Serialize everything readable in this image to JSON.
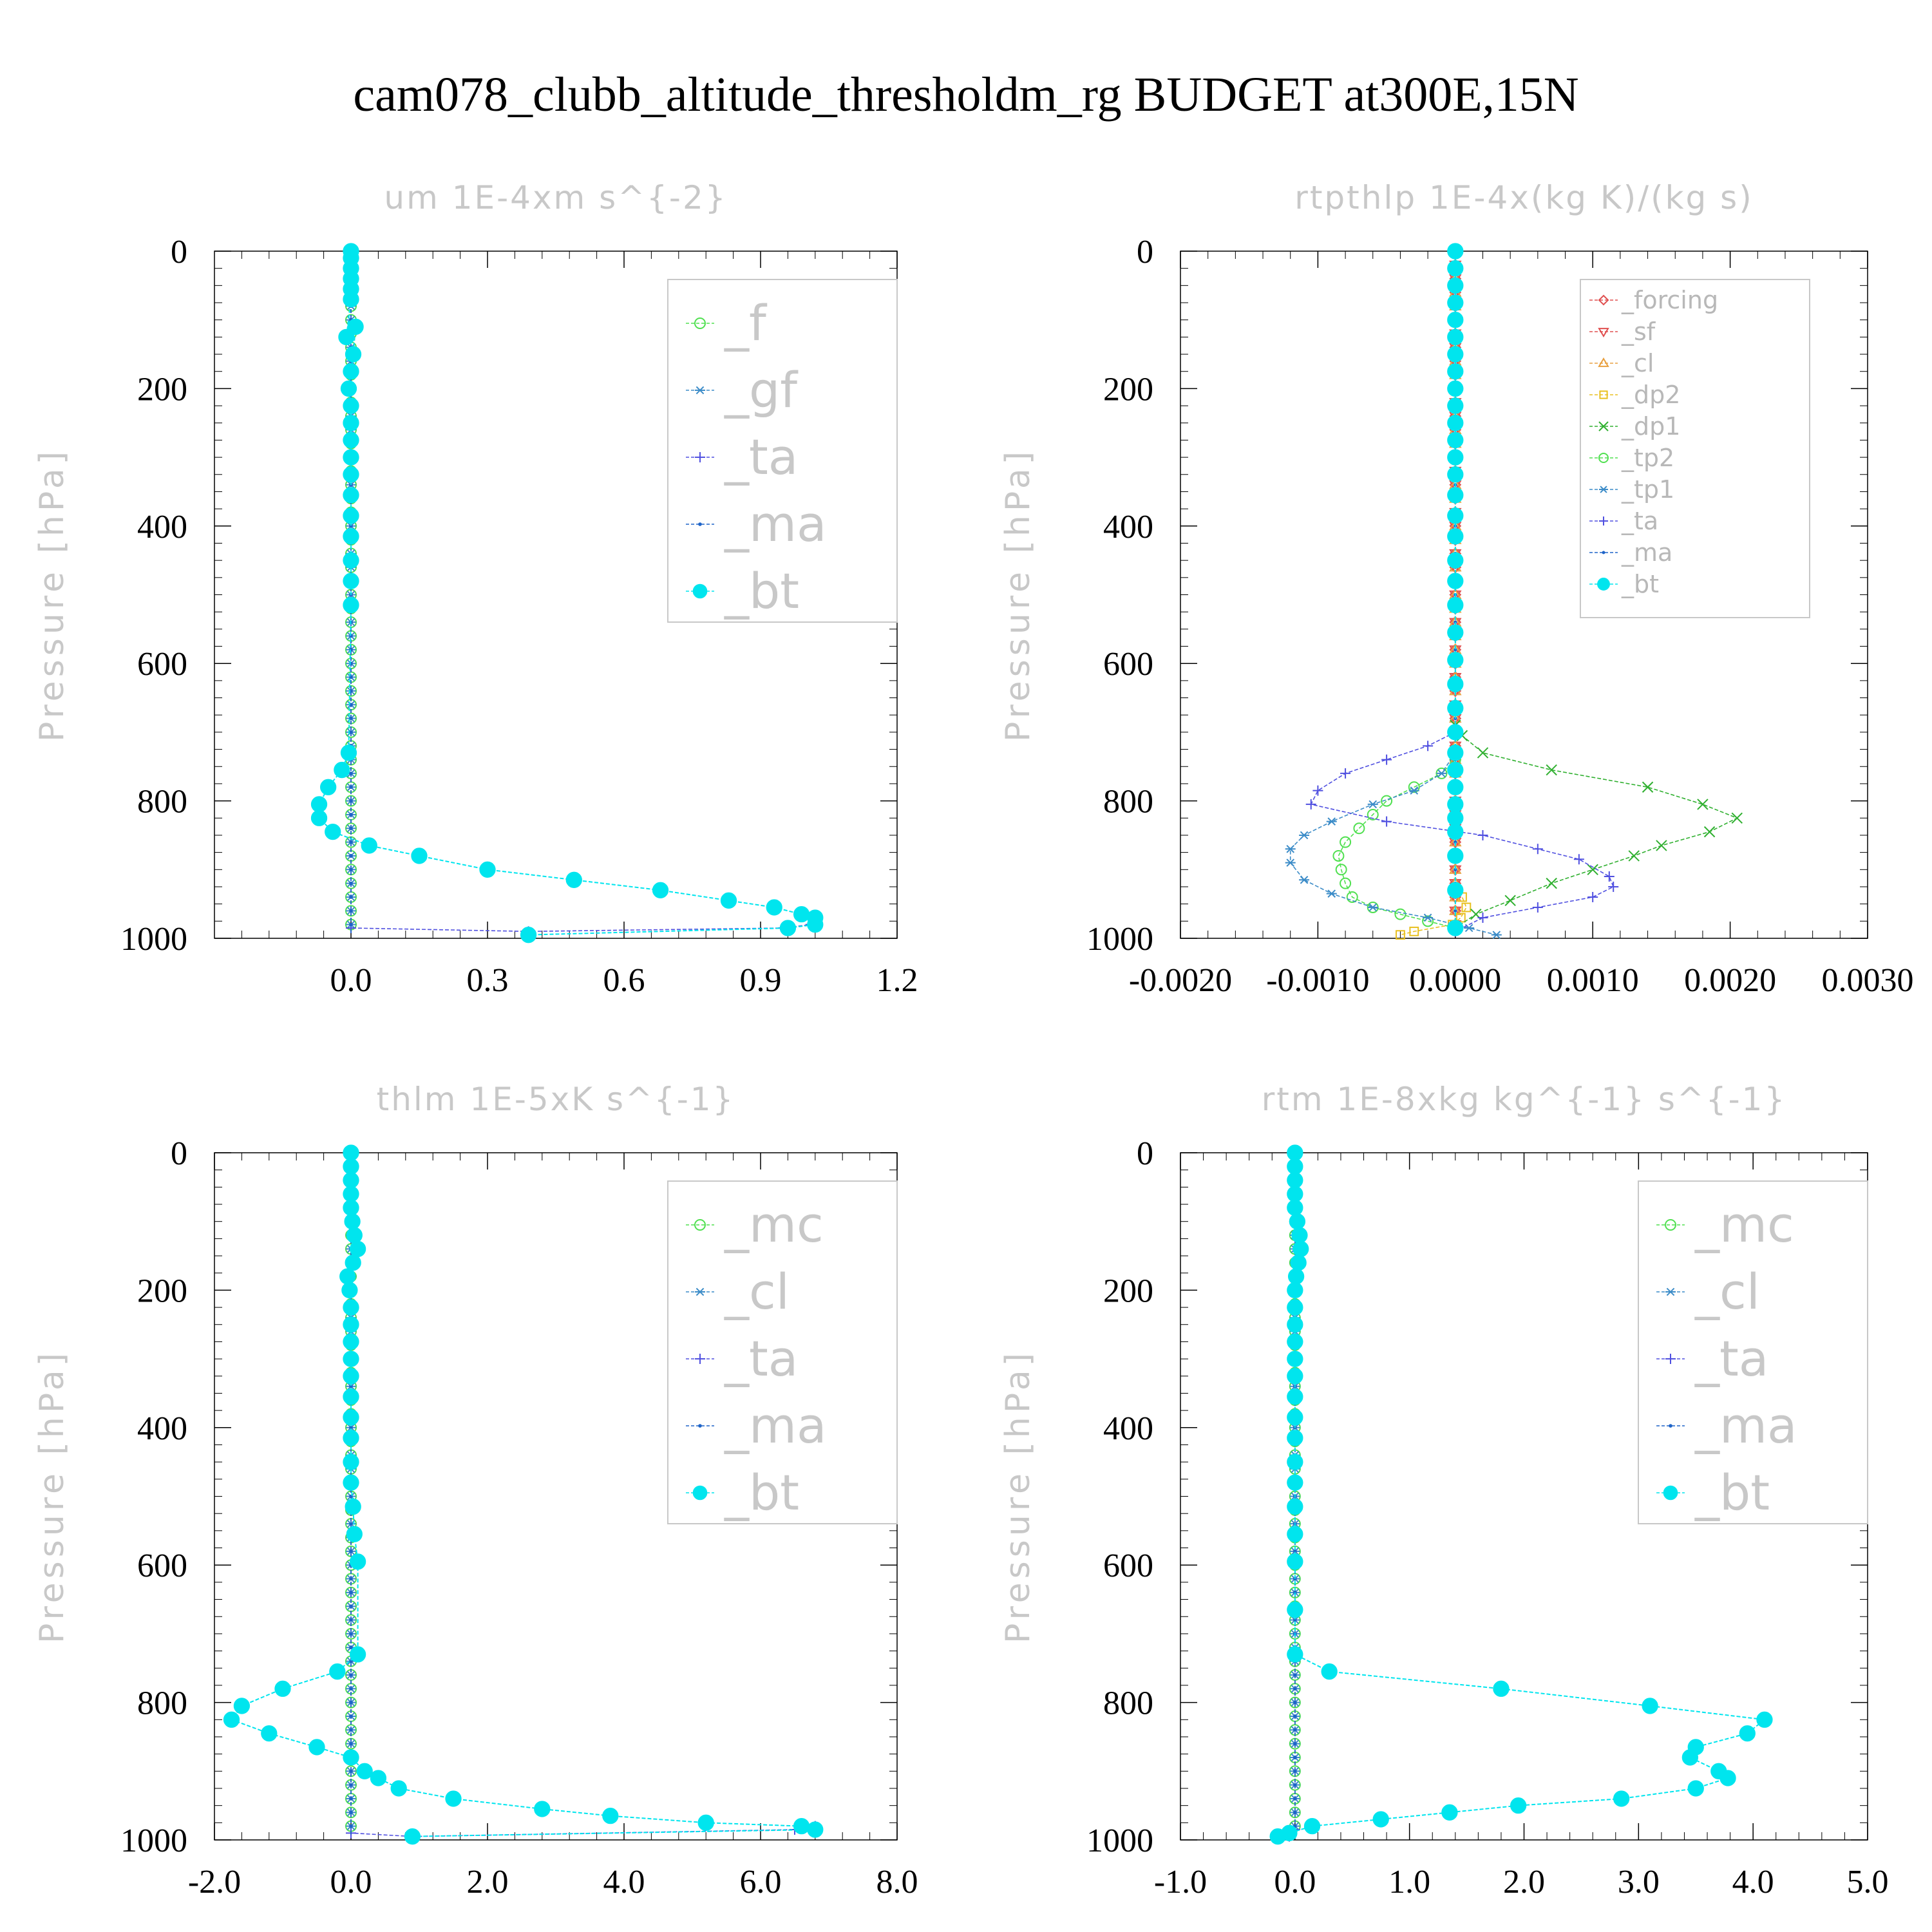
{
  "title": "cam078_clubb_altitude_thresholdm_rg  BUDGET at300E,15N",
  "chart_data": [
    {
      "type": "line",
      "title": "um  1E-4xm s^{-2}",
      "ylabel": "Pressure [hPa]",
      "xlim": [
        -0.3,
        1.2
      ],
      "ylim": [
        1000,
        0
      ],
      "xticks": [
        "0.0",
        "0.3",
        "0.6",
        "0.9",
        "1.2"
      ],
      "xtick_values": [
        0.0,
        0.3,
        0.6,
        0.9,
        1.2
      ],
      "yticks": [
        "0",
        "200",
        "400",
        "600",
        "800",
        "1000"
      ],
      "legend_position": "top-right",
      "legend_size": "big",
      "legend": [
        "_f",
        "_gf",
        "_ta",
        "_ma",
        "_bt"
      ],
      "series": [
        {
          "name": "_f",
          "color": "#50e050",
          "marker": "circle",
          "x": [
            0,
            0
          ],
          "y": [
            0,
            995
          ]
        },
        {
          "name": "_gf",
          "color": "#3c8cc8",
          "marker": "star",
          "x": [
            0,
            0
          ],
          "y": [
            0,
            995
          ]
        },
        {
          "name": "_ta",
          "color": "#5050e0",
          "marker": "plus",
          "x": [
            0,
            0,
            0.39,
            0.95,
            1.01
          ],
          "y": [
            0,
            985,
            990,
            985,
            980
          ]
        },
        {
          "name": "_ma",
          "color": "#1e64c8",
          "marker": "dot",
          "x": [
            0,
            0
          ],
          "y": [
            0,
            995
          ]
        },
        {
          "name": "_bt",
          "color": "#00e5ee",
          "marker": "bigdot",
          "x": [
            0,
            0,
            0,
            0,
            0,
            0,
            -0.01,
            0.01,
            0.005,
            0,
            -0.005,
            0,
            0,
            0,
            0,
            0,
            0,
            0,
            0,
            0,
            0,
            0,
            -0.005,
            -0.02,
            -0.05,
            -0.07,
            -0.07,
            -0.04,
            0.04,
            0.15,
            0.3,
            0.49,
            0.68,
            0.83,
            0.93,
            0.99,
            1.02,
            1.02,
            0.96,
            0.39
          ],
          "y": [
            0,
            10,
            25,
            40,
            55,
            70,
            125,
            110,
            150,
            175,
            200,
            225,
            250,
            275,
            300,
            325,
            355,
            385,
            415,
            450,
            480,
            515,
            730,
            755,
            780,
            805,
            825,
            845,
            865,
            880,
            900,
            915,
            930,
            945,
            955,
            965,
            970,
            980,
            985,
            995
          ]
        }
      ]
    },
    {
      "type": "line",
      "title": "rtpthlp  1E-4x(kg K)/(kg s)",
      "ylabel": "Pressure [hPa]",
      "xlim": [
        -0.002,
        0.003
      ],
      "ylim": [
        1000,
        0
      ],
      "xticks": [
        "-0.0020",
        "-0.0010",
        "0.0000",
        "0.0010",
        "0.0020",
        "0.0030"
      ],
      "xtick_values": [
        -0.002,
        -0.001,
        0.0,
        0.001,
        0.002,
        0.003
      ],
      "yticks": [
        "0",
        "200",
        "400",
        "600",
        "800",
        "1000"
      ],
      "legend_position": "top-right",
      "legend_size": "small",
      "legend": [
        "_forcing",
        "_sf",
        "_cl",
        "_dp2",
        "_dp1",
        "_tp2",
        "_tp1",
        "_ta",
        "_ma",
        "_bt"
      ],
      "series": [
        {
          "name": "_forcing",
          "color": "#e05050",
          "marker": "diamond",
          "x": [
            0,
            0
          ],
          "y": [
            0,
            995
          ]
        },
        {
          "name": "_sf",
          "color": "#e05050",
          "marker": "tri-down",
          "x": [
            0,
            0
          ],
          "y": [
            0,
            995
          ]
        },
        {
          "name": "_cl",
          "color": "#e8a040",
          "marker": "tri-up",
          "x": [
            0,
            0
          ],
          "y": [
            0,
            995
          ]
        },
        {
          "name": "_dp2",
          "color": "#e8c020",
          "marker": "square",
          "x": [
            0,
            0,
            5e-05,
            8e-05,
            4e-05,
            -2e-05,
            -0.0003,
            -0.0004
          ],
          "y": [
            0,
            930,
            940,
            955,
            970,
            980,
            990,
            995
          ]
        },
        {
          "name": "_dp1",
          "color": "#30b030",
          "marker": "x",
          "x": [
            0,
            5e-05,
            0.0002,
            0.0007,
            0.0014,
            0.0018,
            0.00205,
            0.00185,
            0.0015,
            0.0013,
            0.001,
            0.0007,
            0.0004,
            0.00015,
            0
          ],
          "y": [
            690,
            705,
            730,
            755,
            780,
            805,
            825,
            845,
            865,
            880,
            900,
            920,
            945,
            965,
            985
          ]
        },
        {
          "name": "_tp2",
          "color": "#50e050",
          "marker": "circle",
          "x": [
            0,
            -0.0001,
            -0.0003,
            -0.0005,
            -0.0006,
            -0.0007,
            -0.0008,
            -0.00085,
            -0.00083,
            -0.0008,
            -0.00075,
            -0.0006,
            -0.0004,
            -0.0002,
            0
          ],
          "y": [
            740,
            760,
            780,
            800,
            820,
            840,
            860,
            880,
            900,
            920,
            940,
            955,
            965,
            975,
            985
          ]
        },
        {
          "name": "_tp1",
          "color": "#3c8cc8",
          "marker": "star",
          "x": [
            0,
            -0.0001,
            -0.0003,
            -0.0006,
            -0.0009,
            -0.0011,
            -0.0012,
            -0.0012,
            -0.0011,
            -0.0009,
            -0.0006,
            -0.0002,
            0.0001,
            0.0003
          ],
          "y": [
            730,
            760,
            785,
            805,
            830,
            850,
            870,
            890,
            915,
            935,
            955,
            970,
            985,
            995
          ]
        },
        {
          "name": "_ta",
          "color": "#5050e0",
          "marker": "plus",
          "x": [
            0,
            -0.0002,
            -0.0005,
            -0.0008,
            -0.001,
            -0.00105,
            -0.0005,
            0.0002,
            0.0006,
            0.0009,
            0.00112,
            0.00115,
            0.001,
            0.0006,
            0.0002,
            0
          ],
          "y": [
            700,
            720,
            740,
            760,
            785,
            805,
            830,
            850,
            870,
            885,
            910,
            925,
            940,
            955,
            970,
            990
          ]
        },
        {
          "name": "_ma",
          "color": "#1e64c8",
          "marker": "dot",
          "x": [
            0,
            0
          ],
          "y": [
            0,
            995
          ]
        },
        {
          "name": "_bt",
          "color": "#00e5ee",
          "marker": "bigdot",
          "x": [
            0,
            0,
            0,
            0,
            0,
            0,
            0,
            0,
            0,
            0,
            0,
            0,
            0,
            0,
            0,
            0,
            0,
            0,
            0,
            0,
            0,
            0,
            0,
            0,
            0,
            0,
            0,
            0,
            0,
            0,
            0,
            0,
            0,
            0
          ],
          "y": [
            0,
            25,
            50,
            75,
            100,
            125,
            150,
            175,
            200,
            225,
            250,
            275,
            300,
            325,
            355,
            385,
            415,
            450,
            480,
            515,
            555,
            595,
            630,
            665,
            700,
            730,
            755,
            780,
            805,
            825,
            845,
            880,
            930,
            985
          ]
        }
      ]
    },
    {
      "type": "line",
      "title": "thlm  1E-5xK s^{-1}",
      "ylabel": "Pressure [hPa]",
      "xlim": [
        -2.0,
        8.0
      ],
      "ylim": [
        1000,
        0
      ],
      "xticks": [
        "-2.0",
        "0.0",
        "2.0",
        "4.0",
        "6.0",
        "8.0"
      ],
      "xtick_values": [
        -2.0,
        0.0,
        2.0,
        4.0,
        6.0,
        8.0
      ],
      "yticks": [
        "0",
        "200",
        "400",
        "600",
        "800",
        "1000"
      ],
      "legend_position": "top-right",
      "legend_size": "big",
      "legend": [
        "_mc",
        "_cl",
        "_ta",
        "_ma",
        "_bt"
      ],
      "series": [
        {
          "name": "_mc",
          "color": "#50e050",
          "marker": "circle",
          "x": [
            0,
            0
          ],
          "y": [
            0,
            995
          ]
        },
        {
          "name": "_cl",
          "color": "#3c8cc8",
          "marker": "star",
          "x": [
            0,
            0
          ],
          "y": [
            0,
            995
          ]
        },
        {
          "name": "_ta",
          "color": "#5050e0",
          "marker": "plus",
          "x": [
            0,
            0,
            0.9,
            6.5,
            6.8
          ],
          "y": [
            0,
            990,
            995,
            985,
            980
          ]
        },
        {
          "name": "_ma",
          "color": "#1e64c8",
          "marker": "dot",
          "x": [
            0,
            0
          ],
          "y": [
            0,
            995
          ]
        },
        {
          "name": "_bt",
          "color": "#00e5ee",
          "marker": "bigdot",
          "x": [
            0,
            0,
            0,
            0,
            0,
            0.02,
            0.05,
            0.1,
            0.03,
            -0.05,
            -0.02,
            0,
            0,
            0,
            0,
            0,
            0,
            0,
            0,
            0,
            0,
            0.03,
            0.05,
            0.1,
            0.1,
            -0.2,
            -1.0,
            -1.6,
            -1.75,
            -1.2,
            -0.5,
            0,
            0.2,
            0.4,
            0.7,
            1.5,
            2.8,
            3.8,
            5.2,
            6.6,
            6.8,
            0.9
          ],
          "y": [
            0,
            20,
            40,
            60,
            80,
            100,
            120,
            140,
            160,
            180,
            200,
            225,
            250,
            275,
            300,
            325,
            355,
            385,
            415,
            450,
            480,
            515,
            555,
            595,
            730,
            755,
            780,
            805,
            825,
            845,
            865,
            880,
            900,
            910,
            925,
            940,
            955,
            965,
            975,
            980,
            985,
            995
          ]
        }
      ]
    },
    {
      "type": "line",
      "title": "rtm  1E-8xkg kg^{-1} s^{-1}",
      "ylabel": "Pressure [hPa]",
      "xlim": [
        -1.0,
        5.0
      ],
      "ylim": [
        1000,
        0
      ],
      "xticks": [
        "-1.0",
        "0.0",
        "1.0",
        "2.0",
        "3.0",
        "4.0",
        "5.0"
      ],
      "xtick_values": [
        -1.0,
        0.0,
        1.0,
        2.0,
        3.0,
        4.0,
        5.0
      ],
      "yticks": [
        "0",
        "200",
        "400",
        "600",
        "800",
        "1000"
      ],
      "legend_position": "top-right",
      "legend_size": "big",
      "legend": [
        "_mc",
        "_cl",
        "_ta",
        "_ma",
        "_bt"
      ],
      "series": [
        {
          "name": "_mc",
          "color": "#50e050",
          "marker": "circle",
          "x": [
            0,
            0
          ],
          "y": [
            0,
            995
          ]
        },
        {
          "name": "_cl",
          "color": "#3c8cc8",
          "marker": "star",
          "x": [
            0,
            0
          ],
          "y": [
            0,
            995
          ]
        },
        {
          "name": "_ta",
          "color": "#5050e0",
          "marker": "plus",
          "x": [
            0,
            0,
            -0.05
          ],
          "y": [
            0,
            985,
            995
          ]
        },
        {
          "name": "_ma",
          "color": "#1e64c8",
          "marker": "dot",
          "x": [
            0,
            0
          ],
          "y": [
            0,
            995
          ]
        },
        {
          "name": "_bt",
          "color": "#00e5ee",
          "marker": "bigdot",
          "x": [
            0,
            0,
            0,
            0,
            0,
            0.02,
            0.04,
            0.05,
            0.03,
            0.01,
            0,
            0,
            0,
            0,
            0,
            0,
            0,
            0,
            0,
            0,
            0,
            0,
            0,
            0,
            0,
            0,
            0.3,
            1.8,
            3.1,
            4.1,
            3.95,
            3.5,
            3.45,
            3.7,
            3.78,
            3.5,
            2.85,
            1.95,
            1.35,
            0.75,
            0.15,
            -0.05,
            -0.15
          ],
          "y": [
            0,
            20,
            40,
            60,
            80,
            100,
            120,
            140,
            160,
            180,
            200,
            225,
            250,
            275,
            300,
            325,
            355,
            385,
            415,
            450,
            480,
            515,
            555,
            595,
            665,
            730,
            755,
            780,
            805,
            825,
            845,
            865,
            880,
            900,
            910,
            925,
            940,
            950,
            960,
            970,
            980,
            990,
            995
          ]
        }
      ]
    }
  ]
}
